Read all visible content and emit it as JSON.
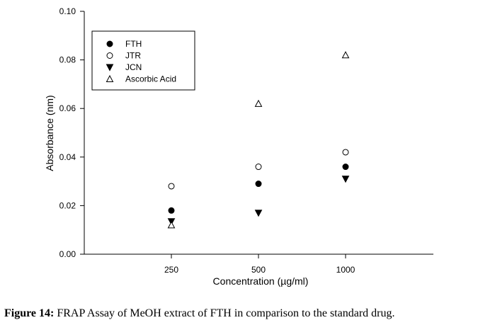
{
  "chart_data": {
    "type": "scatter",
    "categories": [
      "250",
      "500",
      "1000"
    ],
    "xlabel": "Concentration (µg/ml)",
    "ylabel": "Absorbance (nm)",
    "ylim": [
      0,
      0.1
    ],
    "yticks": [
      "0.00",
      "0.02",
      "0.04",
      "0.06",
      "0.08",
      "0.10"
    ],
    "grid": false,
    "legend_position": "top-left",
    "series": [
      {
        "name": "FTH",
        "marker": "filled-circle",
        "values": [
          0.018,
          0.029,
          0.036
        ]
      },
      {
        "name": "JTR",
        "marker": "open-circle",
        "values": [
          0.028,
          0.036,
          0.042
        ]
      },
      {
        "name": "JCN",
        "marker": "filled-triangle-down",
        "values": [
          0.0135,
          0.017,
          0.031
        ]
      },
      {
        "name": "Ascorbic Acid",
        "marker": "open-triangle-up",
        "values": [
          0.012,
          0.062,
          0.082
        ]
      }
    ]
  },
  "caption": {
    "label": "Figure 14:",
    "text": " FRAP Assay of MeOH extract of FTH in comparison to the standard drug."
  }
}
